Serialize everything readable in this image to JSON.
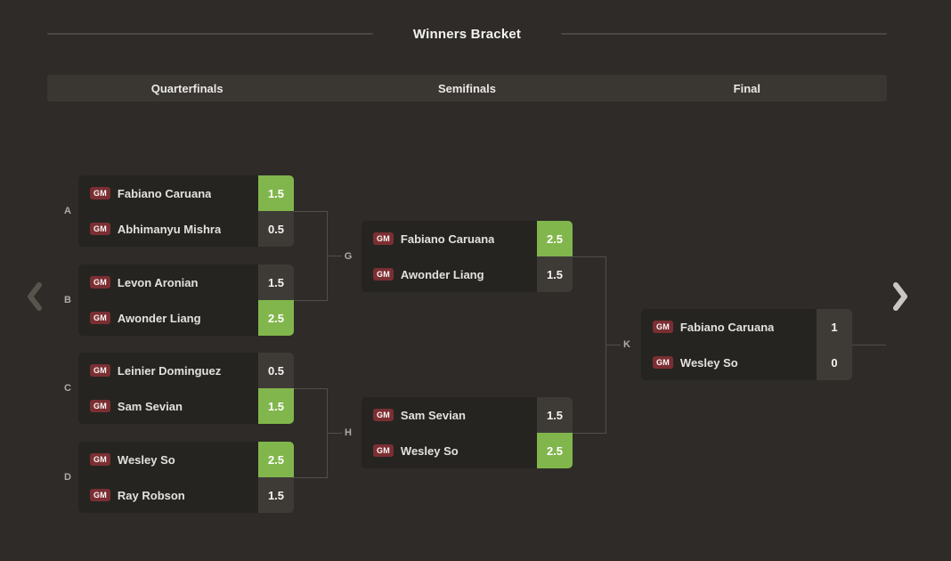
{
  "title": "Winners Bracket",
  "rounds": {
    "quarterfinals": "Quarterfinals",
    "semifinals": "Semifinals",
    "final": "Final"
  },
  "nav": {
    "prev_icon": "chevron-left-icon",
    "next_icon": "chevron-right-icon"
  },
  "colors": {
    "page_bg": "#2e2b28",
    "card_bg": "#262421",
    "header_bg": "#3a3733",
    "winner_green": "#81b64c",
    "score_neutral": "#3e3b37",
    "gm_badge_red": "#7b2f33",
    "connector_gray": "#53504a"
  },
  "matches": [
    {
      "id": "A",
      "round": "Quarterfinals",
      "players": [
        {
          "badge": "GM",
          "name": "Fabiano Caruana",
          "score": "1.5",
          "winner": true
        },
        {
          "badge": "GM",
          "name": "Abhimanyu Mishra",
          "score": "0.5",
          "winner": false
        }
      ]
    },
    {
      "id": "B",
      "round": "Quarterfinals",
      "players": [
        {
          "badge": "GM",
          "name": "Levon Aronian",
          "score": "1.5",
          "winner": false
        },
        {
          "badge": "GM",
          "name": "Awonder Liang",
          "score": "2.5",
          "winner": true
        }
      ]
    },
    {
      "id": "C",
      "round": "Quarterfinals",
      "players": [
        {
          "badge": "GM",
          "name": "Leinier Dominguez",
          "score": "0.5",
          "winner": false
        },
        {
          "badge": "GM",
          "name": "Sam Sevian",
          "score": "1.5",
          "winner": true
        }
      ]
    },
    {
      "id": "D",
      "round": "Quarterfinals",
      "players": [
        {
          "badge": "GM",
          "name": "Wesley So",
          "score": "2.5",
          "winner": true
        },
        {
          "badge": "GM",
          "name": "Ray Robson",
          "score": "1.5",
          "winner": false
        }
      ]
    },
    {
      "id": "G",
      "round": "Semifinals",
      "players": [
        {
          "badge": "GM",
          "name": "Fabiano Caruana",
          "score": "2.5",
          "winner": true
        },
        {
          "badge": "GM",
          "name": "Awonder Liang",
          "score": "1.5",
          "winner": false
        }
      ]
    },
    {
      "id": "H",
      "round": "Semifinals",
      "players": [
        {
          "badge": "GM",
          "name": "Sam Sevian",
          "score": "1.5",
          "winner": false
        },
        {
          "badge": "GM",
          "name": "Wesley So",
          "score": "2.5",
          "winner": true
        }
      ]
    },
    {
      "id": "K",
      "round": "Final",
      "players": [
        {
          "badge": "GM",
          "name": "Fabiano Caruana",
          "score": "1",
          "winner": false
        },
        {
          "badge": "GM",
          "name": "Wesley So",
          "score": "0",
          "winner": false
        }
      ]
    }
  ]
}
